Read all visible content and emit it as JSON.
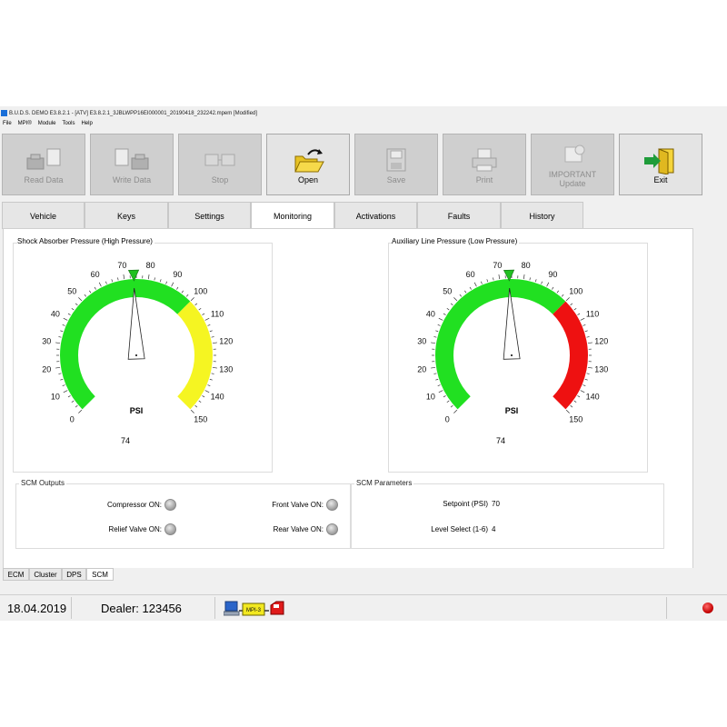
{
  "window": {
    "title": "B.U.D.S. DEMO E3.8.2.1 - [ATV] E3.8.2.1_3JBLWPP16EI000001_20190418_232242.mpem [Modified]"
  },
  "menu": [
    "File",
    "MPI®",
    "Module",
    "Tools",
    "Help"
  ],
  "toolbar": {
    "read_data": "Read Data",
    "write_data": "Write Data",
    "stop": "Stop",
    "open": "Open",
    "save": "Save",
    "print": "Print",
    "important_line1": "IMPORTANT",
    "important_line2": "Update",
    "exit": "Exit"
  },
  "tabs": [
    "Vehicle",
    "Keys",
    "Settings",
    "Monitoring",
    "Activations",
    "Faults",
    "History"
  ],
  "active_tab": "Monitoring",
  "gauges": {
    "left": {
      "title": "Shock Absorber Pressure (High Pressure)",
      "unit": "PSI",
      "value": 74,
      "value_label": "74",
      "min": 0,
      "max": 150,
      "zones": [
        {
          "from": 0,
          "to": 100,
          "color": "#21e021"
        },
        {
          "from": 100,
          "to": 150,
          "color": "#f5f522"
        }
      ]
    },
    "right": {
      "title": "Auxiliary Line Pressure (Low Pressure)",
      "unit": "PSI",
      "value": 74,
      "value_label": "74",
      "min": 0,
      "max": 150,
      "zones": [
        {
          "from": 0,
          "to": 100,
          "color": "#21e021"
        },
        {
          "from": 100,
          "to": 150,
          "color": "#ee1111"
        }
      ]
    },
    "tick_labels": [
      "0",
      "10",
      "20",
      "30",
      "40",
      "50",
      "60",
      "70",
      "80",
      "90",
      "100",
      "110",
      "120",
      "130",
      "140",
      "150"
    ]
  },
  "scm_outputs": {
    "title": "SCM Outputs",
    "compressor": "Compressor ON:",
    "relief_valve": "Relief Valve ON:",
    "front_valve": "Front Valve ON:",
    "rear_valve": "Rear Valve ON:"
  },
  "scm_parameters": {
    "title": "SCM Parameters",
    "setpoint_label": "Setpoint (PSI)",
    "setpoint_value": "70",
    "level_label": "Level Select (1-6)",
    "level_value": "4"
  },
  "subtabs": [
    "ECM",
    "Cluster",
    "DPS",
    "SCM"
  ],
  "active_subtab": "SCM",
  "status": {
    "date": "18.04.2019",
    "dealer": "Dealer: 123456",
    "mpi_badge": "MPI-3"
  }
}
